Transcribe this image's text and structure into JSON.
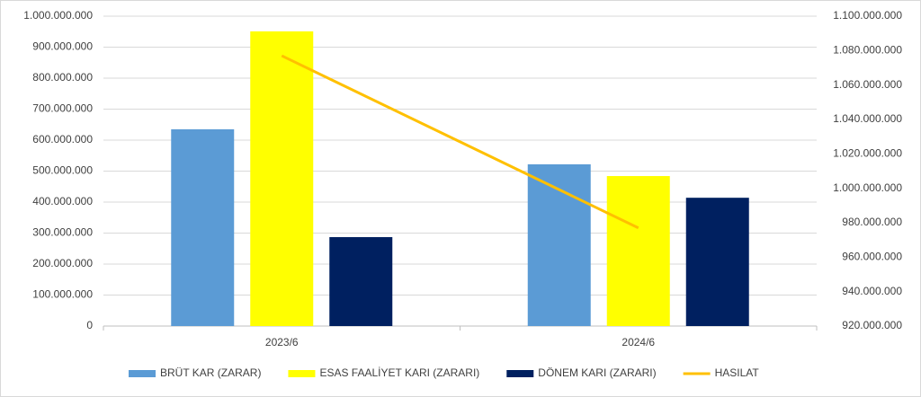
{
  "chart_data": {
    "type": "bar-line",
    "categories": [
      "2023/6",
      "2024/6"
    ],
    "series": [
      {
        "name": "BRÜT KAR (ZARAR)",
        "color": "#5b9bd5",
        "values": [
          635000000,
          522000000
        ]
      },
      {
        "name": "ESAS FAALİYET KARI (ZARARI)",
        "color": "#ffff00",
        "values": [
          951000000,
          484000000
        ]
      },
      {
        "name": "DÖNEM KARI (ZARARI)",
        "color": "#002060",
        "values": [
          287000000,
          414000000
        ]
      },
      {
        "name": "HASILAT",
        "color": "#ffc000",
        "values": [
          1077000000,
          977000000
        ],
        "axis": "y2"
      }
    ],
    "ylim": [
      0,
      1000000000
    ],
    "yticks": [
      0,
      {
        "value": 100000000,
        "label": "100.000.000"
      },
      {
        "value": 200000000,
        "label": "200.000.000"
      },
      {
        "value": 300000000,
        "label": "300.000.000"
      },
      {
        "value": 400000000,
        "label": "400.000.000"
      },
      {
        "value": 500000000,
        "label": "500.000.000"
      },
      {
        "value": 600000000,
        "label": "600.000.000"
      },
      {
        "value": 700000000,
        "label": "700.000.000"
      },
      {
        "value": 800000000,
        "label": "800.000.000"
      },
      {
        "value": 900000000,
        "label": "900.000.000"
      },
      {
        "value": 1000000000,
        "label": "1.000.000.000"
      }
    ],
    "y2lim": [
      920000000,
      1100000000
    ],
    "y2ticks": [
      {
        "value": 920000000,
        "label": "920.000.000"
      },
      {
        "value": 940000000,
        "label": "940.000.000"
      },
      {
        "value": 960000000,
        "label": "960.000.000"
      },
      {
        "value": 980000000,
        "label": "980.000.000"
      },
      {
        "value": 1000000000,
        "label": "1.000.000.000"
      },
      {
        "value": 1020000000,
        "label": "1.020.000.000"
      },
      {
        "value": 1040000000,
        "label": "1.040.000.000"
      },
      {
        "value": 1060000000,
        "label": "1.060.000.000"
      },
      {
        "value": 1080000000,
        "label": "1.080.000.000"
      },
      {
        "value": 1100000000,
        "label": "1.100.000.000"
      }
    ],
    "grid": true,
    "legend": "bottom"
  }
}
